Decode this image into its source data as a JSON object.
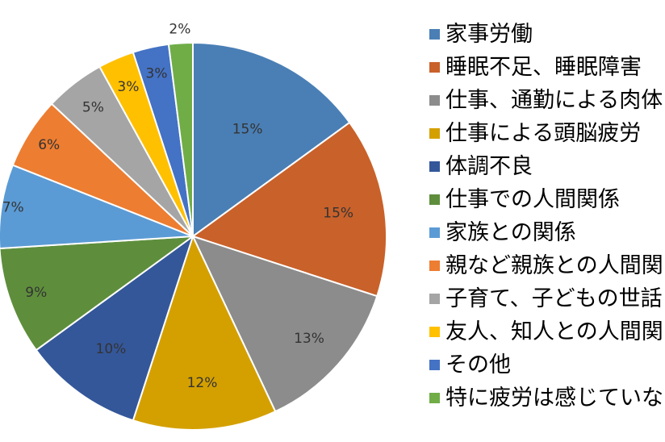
{
  "chart_data": {
    "type": "pie",
    "categories": [
      "家事労働",
      "睡眠不足、睡眠障害",
      "仕事、通勤による肉体疲労",
      "仕事による頭脳疲労",
      "体調不良",
      "仕事での人間関係",
      "家族との関係",
      "親など親族との人間関係",
      "子育て、子どもの世話",
      "友人、知人との人間関係",
      "その他",
      "特に疲労は感じていない"
    ],
    "legend_labels": [
      "家事労働",
      "睡眠不足、睡眠障害",
      "仕事、通勤による肉体",
      "仕事による頭脳疲労",
      "体調不良",
      "仕事での人間関係",
      "家族との関係",
      "親など親族との人間関",
      "子育て、子どもの世話",
      "友人、知人との人間関",
      "その他",
      "特に疲労は感じていな"
    ],
    "values": [
      15,
      15,
      13,
      12,
      10,
      9,
      7,
      6,
      5,
      3,
      3,
      2
    ],
    "data_labels": [
      "15%",
      "15%",
      "13%",
      "12%",
      "10%",
      "9%",
      "7%",
      "6%",
      "5%",
      "3%",
      "3%",
      "2%"
    ],
    "colors": [
      "#4a7fb5",
      "#c9612a",
      "#8c8c8c",
      "#d4a000",
      "#34579a",
      "#5e8e3c",
      "#5b9bd5",
      "#ed7d31",
      "#a5a5a5",
      "#ffc000",
      "#4472c4",
      "#70ad47"
    ],
    "title": "",
    "legend_position": "right",
    "start_angle": "12 o'clock, clockwise"
  }
}
